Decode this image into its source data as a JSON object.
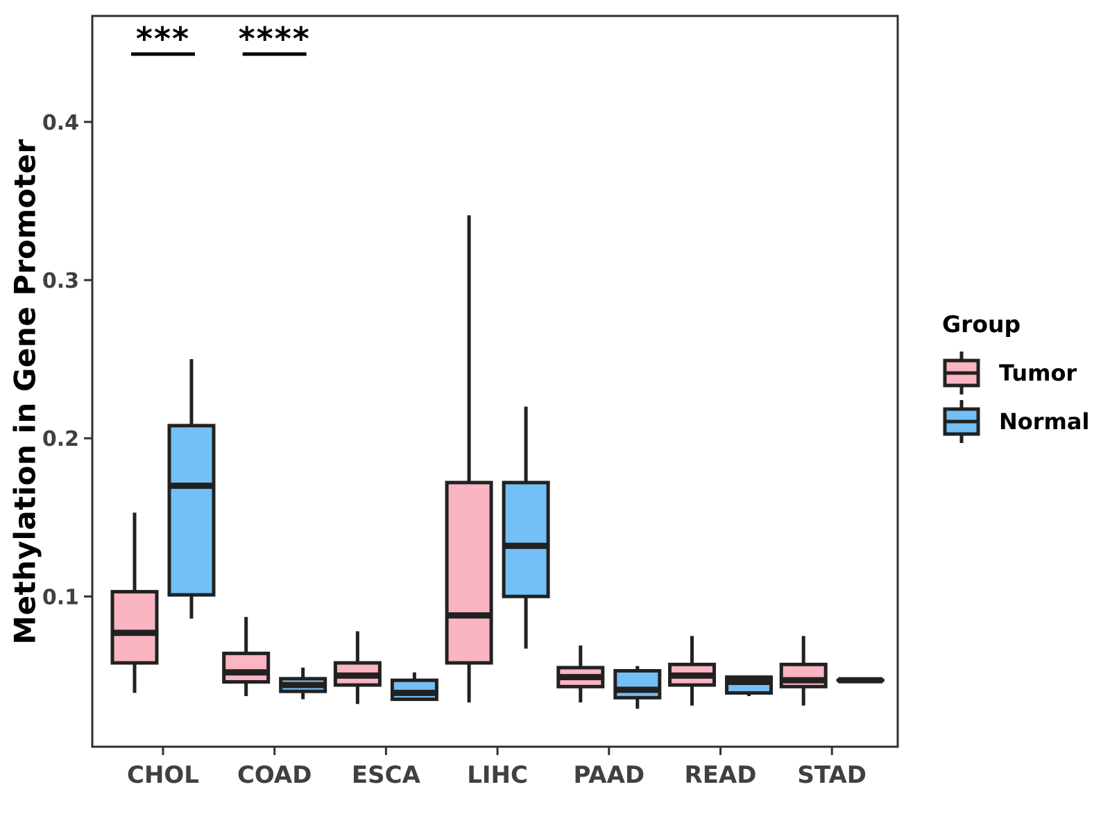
{
  "chart_data": {
    "type": "boxplot",
    "title": "",
    "xlabel": "",
    "ylabel": "Methylation in Gene Promoter",
    "categories": [
      "CHOL",
      "COAD",
      "ESCA",
      "LIHC",
      "PAAD",
      "READ",
      "STAD"
    ],
    "y_ticks": [
      {
        "value": 0.1,
        "label": "0.1"
      },
      {
        "value": 0.2,
        "label": "0.2"
      },
      {
        "value": 0.3,
        "label": "0.3"
      },
      {
        "value": 0.4,
        "label": "0.4"
      }
    ],
    "ylim": [
      0.005,
      0.467
    ],
    "grid": false,
    "legend": {
      "title": "Group",
      "position": "right",
      "entries": [
        {
          "label": "Tumor",
          "color": "#FBB4C2"
        },
        {
          "label": "Normal",
          "color": "#74BFF5"
        }
      ]
    },
    "series": [
      {
        "name": "Tumor",
        "color": "#FBB4C2",
        "boxes": [
          {
            "category": "CHOL",
            "whisker_low": 0.039,
            "q1": 0.058,
            "median": 0.077,
            "q3": 0.103,
            "whisker_high": 0.153
          },
          {
            "category": "COAD",
            "whisker_low": 0.037,
            "q1": 0.046,
            "median": 0.052,
            "q3": 0.064,
            "whisker_high": 0.087
          },
          {
            "category": "ESCA",
            "whisker_low": 0.032,
            "q1": 0.044,
            "median": 0.05,
            "q3": 0.058,
            "whisker_high": 0.078
          },
          {
            "category": "LIHC",
            "whisker_low": 0.033,
            "q1": 0.058,
            "median": 0.088,
            "q3": 0.172,
            "whisker_high": 0.341
          },
          {
            "category": "PAAD",
            "whisker_low": 0.033,
            "q1": 0.043,
            "median": 0.049,
            "q3": 0.055,
            "whisker_high": 0.069
          },
          {
            "category": "READ",
            "whisker_low": 0.031,
            "q1": 0.044,
            "median": 0.05,
            "q3": 0.057,
            "whisker_high": 0.075
          },
          {
            "category": "STAD",
            "whisker_low": 0.031,
            "q1": 0.043,
            "median": 0.047,
            "q3": 0.057,
            "whisker_high": 0.075
          }
        ]
      },
      {
        "name": "Normal",
        "color": "#74BFF5",
        "boxes": [
          {
            "category": "CHOL",
            "whisker_low": 0.086,
            "q1": 0.101,
            "median": 0.17,
            "q3": 0.208,
            "whisker_high": 0.25
          },
          {
            "category": "COAD",
            "whisker_low": 0.035,
            "q1": 0.04,
            "median": 0.044,
            "q3": 0.048,
            "whisker_high": 0.055
          },
          {
            "category": "ESCA",
            "whisker_low": 0.034,
            "q1": 0.035,
            "median": 0.039,
            "q3": 0.047,
            "whisker_high": 0.052
          },
          {
            "category": "LIHC",
            "whisker_low": 0.067,
            "q1": 0.1,
            "median": 0.132,
            "q3": 0.172,
            "whisker_high": 0.22
          },
          {
            "category": "PAAD",
            "whisker_low": 0.029,
            "q1": 0.036,
            "median": 0.041,
            "q3": 0.053,
            "whisker_high": 0.056
          },
          {
            "category": "READ",
            "whisker_low": 0.037,
            "q1": 0.039,
            "median": 0.046,
            "q3": 0.049,
            "whisker_high": 0.05
          },
          {
            "category": "STAD",
            "whisker_low": 0.047,
            "q1": 0.047,
            "median": 0.047,
            "q3": 0.047,
            "whisker_high": 0.047
          }
        ]
      }
    ],
    "annotations": [
      {
        "category": "CHOL",
        "text": "***"
      },
      {
        "category": "COAD",
        "text": "****"
      }
    ],
    "colors": {
      "box_border": "#212121",
      "panel_border": "#2F2F2F",
      "axis_text": "#404040",
      "annotation": "#000000"
    }
  }
}
